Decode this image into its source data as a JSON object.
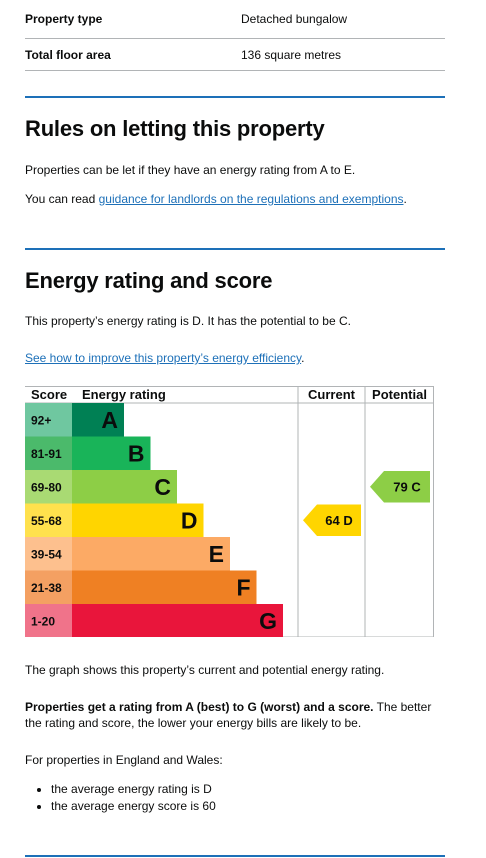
{
  "summary": {
    "rows": [
      {
        "label": "Property type",
        "value": "Detached bungalow"
      },
      {
        "label": "Total floor area",
        "value": "136 square metres"
      }
    ]
  },
  "letting": {
    "heading": "Rules on letting this property",
    "para1": "Properties can be let if they have an energy rating from A to E.",
    "para2_prefix": "You can read ",
    "para2_link": "guidance for landlords on the regulations and exemptions",
    "para2_suffix": "."
  },
  "energy": {
    "heading": "Energy rating and score",
    "intro": "This property’s energy rating is D. It has the potential to be C.",
    "improve_link": "See how to improve this property’s energy efficiency",
    "improve_suffix": ".",
    "graph_caption": "The graph shows this property’s current and potential energy rating.",
    "bold_sentence": "Properties get a rating from A (best) to G (worst) and a score.",
    "rest_sentence": " The better the rating and score, the lower your energy bills are likely to be.",
    "averages_intro": "For properties in England and Wales:",
    "averages": [
      "the average energy rating is D",
      "the average energy score is 60"
    ]
  },
  "chart_data": {
    "type": "bar",
    "headers": {
      "score": "Score",
      "rating": "Energy rating",
      "current": "Current",
      "potential": "Potential"
    },
    "bands": [
      {
        "range": "92+",
        "letter": "A",
        "color": "#008054",
        "light": "#6fc7a0"
      },
      {
        "range": "81-91",
        "letter": "B",
        "color": "#19b459",
        "light": "#4bba6b"
      },
      {
        "range": "69-80",
        "letter": "C",
        "color": "#8dce46",
        "light": "#a9da73"
      },
      {
        "range": "55-68",
        "letter": "D",
        "color": "#ffd500",
        "light": "#ffe14d"
      },
      {
        "range": "39-54",
        "letter": "E",
        "color": "#fcaa65",
        "light": "#fdc08e"
      },
      {
        "range": "21-38",
        "letter": "F",
        "color": "#ef8023",
        "light": "#f4a062"
      },
      {
        "range": "1-20",
        "letter": "G",
        "color": "#e9153b",
        "light": "#f0738a"
      }
    ],
    "current": {
      "score": 64,
      "letter": "D",
      "label": "64 D",
      "color": "#ffd500"
    },
    "potential": {
      "score": 79,
      "letter": "C",
      "label": "79 C",
      "color": "#8dce46"
    }
  }
}
